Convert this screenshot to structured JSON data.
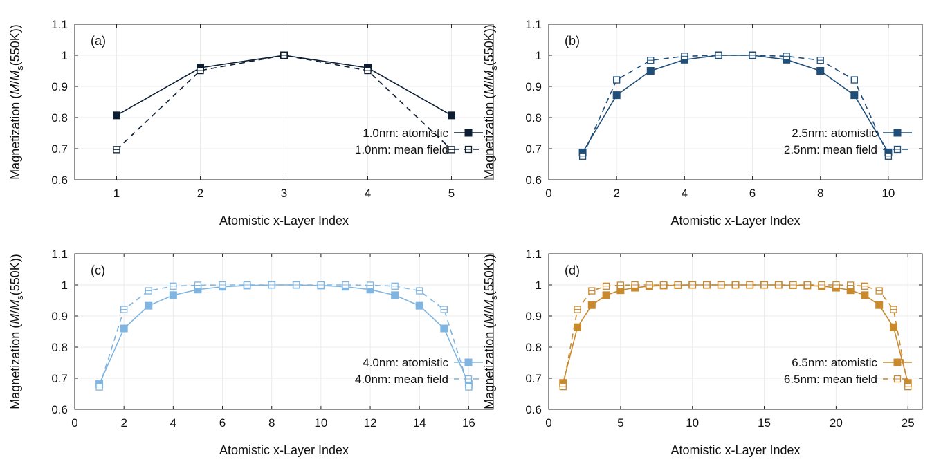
{
  "chart_data": [
    {
      "type": "line",
      "panel_label": "(a)",
      "xlabel": "Atomistic x-Layer Index",
      "ylabel": {
        "prefix": "Magnetization (",
        "m": "M",
        "slash": "/",
        "ms": "M",
        "sub": "s",
        "suffix": "(550K))"
      },
      "xlim": [
        0.5,
        5.5
      ],
      "ylim": [
        0.6,
        1.1
      ],
      "xticks": [
        1,
        2,
        3,
        4,
        5
      ],
      "yticks": [
        0.6,
        0.7,
        0.8,
        0.9,
        1,
        1.1
      ],
      "ytick_labels": [
        "0.6",
        "0.7",
        "0.8",
        "0.9",
        "1",
        "1.1"
      ],
      "color": "#0d1e33",
      "grid": true,
      "legend_position": "bottom-right",
      "series": [
        {
          "name": "1.0nm: atomistic",
          "style": "solid-filled",
          "x": [
            1,
            2,
            3,
            4,
            5
          ],
          "y": [
            0.807,
            0.96,
            1.0,
            0.96,
            0.807
          ]
        },
        {
          "name": "1.0nm: mean field",
          "style": "dashed-open",
          "x": [
            1,
            2,
            3,
            4,
            5
          ],
          "y": [
            0.697,
            0.951,
            1.0,
            0.951,
            0.697
          ]
        }
      ]
    },
    {
      "type": "line",
      "panel_label": "(b)",
      "xlabel": "Atomistic x-Layer Index",
      "ylabel": {
        "prefix": "Magnetization (",
        "m": "M",
        "slash": "/",
        "ms": "M",
        "sub": "s",
        "suffix": "(550K))"
      },
      "xlim": [
        0,
        11
      ],
      "ylim": [
        0.6,
        1.1
      ],
      "xticks": [
        0,
        2,
        4,
        6,
        8,
        10
      ],
      "yticks": [
        0.6,
        0.7,
        0.8,
        0.9,
        1,
        1.1
      ],
      "ytick_labels": [
        "0.6",
        "0.7",
        "0.8",
        "0.9",
        "1",
        "1.1"
      ],
      "color": "#1f4e79",
      "grid": true,
      "legend_position": "bottom-right",
      "series": [
        {
          "name": "2.5nm: atomistic",
          "style": "solid-filled",
          "x": [
            1,
            2,
            3,
            4,
            5,
            6,
            7,
            8,
            9,
            10
          ],
          "y": [
            0.688,
            0.872,
            0.95,
            0.986,
            1.0,
            1.0,
            0.986,
            0.95,
            0.872,
            0.688
          ]
        },
        {
          "name": "2.5nm: mean field",
          "style": "dashed-open",
          "x": [
            1,
            2,
            3,
            4,
            5,
            6,
            7,
            8,
            9,
            10
          ],
          "y": [
            0.676,
            0.921,
            0.984,
            0.997,
            1.0,
            1.0,
            0.997,
            0.984,
            0.921,
            0.676
          ]
        }
      ]
    },
    {
      "type": "line",
      "panel_label": "(c)",
      "xlabel": "Atomistic x-Layer Index",
      "ylabel": {
        "prefix": "Magnetization (",
        "m": "M",
        "slash": "/",
        "ms": "M",
        "sub": "s",
        "suffix": "(550K))"
      },
      "xlim": [
        0,
        17
      ],
      "ylim": [
        0.6,
        1.1
      ],
      "xticks": [
        0,
        2,
        4,
        6,
        8,
        10,
        12,
        14,
        16
      ],
      "yticks": [
        0.6,
        0.7,
        0.8,
        0.9,
        1,
        1.1
      ],
      "ytick_labels": [
        "0.6",
        "0.7",
        "0.8",
        "0.9",
        "1",
        "1.1"
      ],
      "color": "#7fb5e0",
      "grid": true,
      "legend_position": "bottom-right",
      "series": [
        {
          "name": "4.0nm: atomistic",
          "style": "solid-filled",
          "x": [
            1,
            2,
            3,
            4,
            5,
            6,
            7,
            8,
            9,
            10,
            11,
            12,
            13,
            14,
            15,
            16
          ],
          "y": [
            0.681,
            0.86,
            0.933,
            0.967,
            0.985,
            0.994,
            0.998,
            1.0,
            1.0,
            0.998,
            0.994,
            0.985,
            0.967,
            0.933,
            0.86,
            0.681
          ]
        },
        {
          "name": "4.0nm: mean field",
          "style": "dashed-open",
          "x": [
            1,
            2,
            3,
            4,
            5,
            6,
            7,
            8,
            9,
            10,
            11,
            12,
            13,
            14,
            15,
            16
          ],
          "y": [
            0.672,
            0.921,
            0.981,
            0.996,
            0.999,
            1.0,
            1.0,
            1.0,
            1.0,
            1.0,
            1.0,
            0.999,
            0.996,
            0.981,
            0.921,
            0.672
          ]
        }
      ]
    },
    {
      "type": "line",
      "panel_label": "(d)",
      "xlabel": "Atomistic x-Layer Index",
      "ylabel": {
        "prefix": "Magnetization (",
        "m": "M",
        "slash": "/",
        "ms": "M",
        "sub": "s",
        "suffix": "(550K))"
      },
      "xlim": [
        0,
        26
      ],
      "ylim": [
        0.6,
        1.1
      ],
      "xticks": [
        0,
        5,
        10,
        15,
        20,
        25
      ],
      "yticks": [
        0.6,
        0.7,
        0.8,
        0.9,
        1,
        1.1
      ],
      "ytick_labels": [
        "0.6",
        "0.7",
        "0.8",
        "0.9",
        "1",
        "1.1"
      ],
      "color": "#c98a2e",
      "grid": true,
      "legend_position": "bottom-right",
      "series": [
        {
          "name": "6.5nm: atomistic",
          "style": "solid-filled",
          "x": [
            1,
            2,
            3,
            4,
            5,
            6,
            7,
            8,
            9,
            10,
            11,
            12,
            13,
            14,
            15,
            16,
            17,
            18,
            19,
            20,
            21,
            22,
            23,
            24,
            25
          ],
          "y": [
            0.685,
            0.864,
            0.935,
            0.967,
            0.983,
            0.991,
            0.996,
            0.998,
            0.999,
            1.0,
            1.0,
            1.0,
            1.0,
            1.0,
            1.0,
            1.0,
            0.999,
            0.998,
            0.996,
            0.991,
            0.983,
            0.967,
            0.935,
            0.864,
            0.685
          ]
        },
        {
          "name": "6.5nm: mean field",
          "style": "dashed-open",
          "x": [
            1,
            2,
            3,
            4,
            5,
            6,
            7,
            8,
            9,
            10,
            11,
            12,
            13,
            14,
            15,
            16,
            17,
            18,
            19,
            20,
            21,
            22,
            23,
            24,
            25
          ],
          "y": [
            0.673,
            0.921,
            0.981,
            0.996,
            0.999,
            1.0,
            1.0,
            1.0,
            1.0,
            1.0,
            1.0,
            1.0,
            1.0,
            1.0,
            1.0,
            1.0,
            1.0,
            1.0,
            1.0,
            1.0,
            0.999,
            0.996,
            0.981,
            0.921,
            0.673
          ]
        }
      ]
    }
  ]
}
